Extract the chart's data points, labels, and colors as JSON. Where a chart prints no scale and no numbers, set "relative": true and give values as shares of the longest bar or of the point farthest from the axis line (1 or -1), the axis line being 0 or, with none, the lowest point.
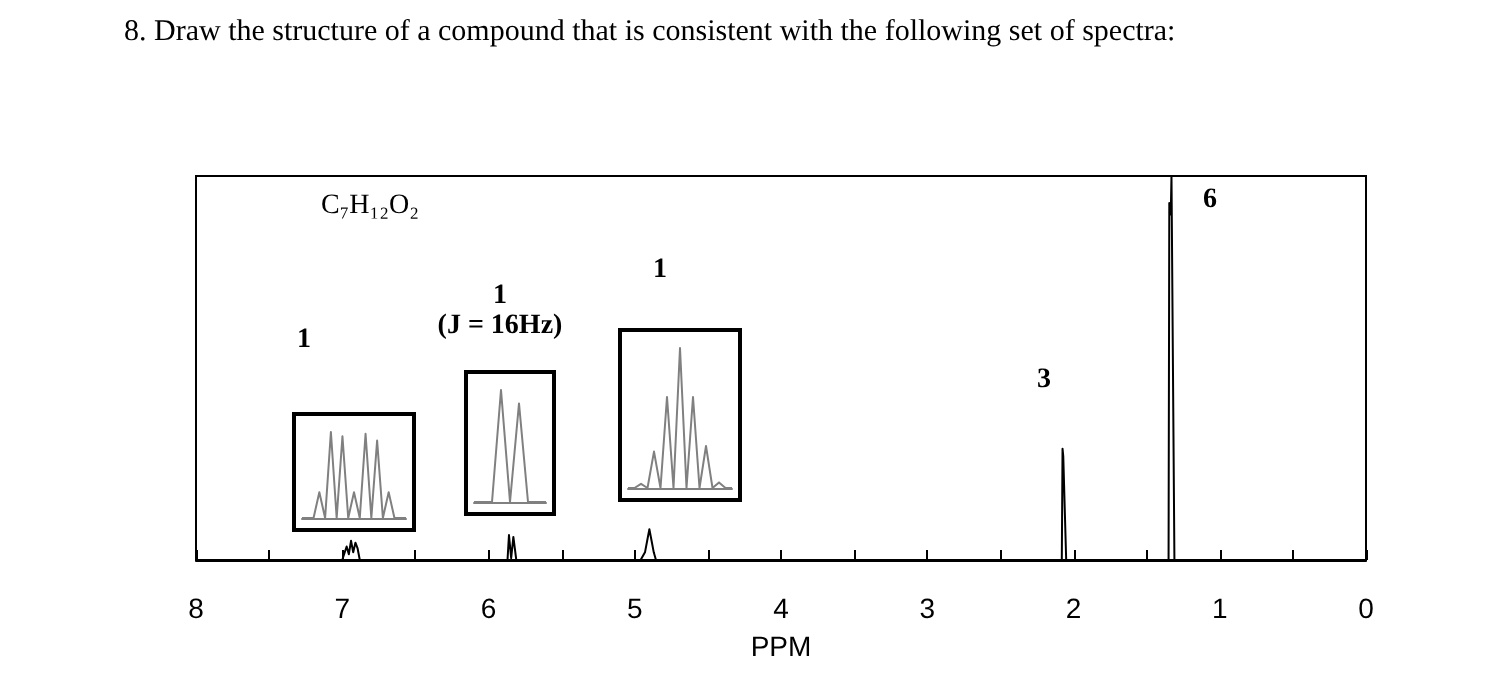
{
  "chart_data": [
    {
      "type": "line",
      "title": "8. Draw the structure of a compound that is consistent with the following set of spectra:",
      "xlabel": "PPM",
      "relative": true,
      "marker": "none",
      "x": [
        8,
        7.0,
        6.97,
        6.955,
        6.94,
        6.925,
        6.91,
        6.895,
        6.88,
        6.86,
        5.9,
        5.87,
        5.86,
        5.845,
        5.83,
        5.81,
        4.96,
        4.93,
        4.915,
        4.9,
        4.885,
        4.87,
        4.855,
        4.83,
        2.1,
        2.08,
        2.075,
        2.07,
        2.05,
        1.37,
        1.35,
        1.345,
        1.335,
        1.33,
        1.31,
        0
      ],
      "values": [
        0,
        0,
        0.035,
        0.015,
        0.05,
        0.02,
        0.045,
        0.03,
        0,
        0,
        0,
        0,
        0.065,
        0.005,
        0.06,
        0,
        0,
        0.02,
        0.05,
        0.08,
        0.05,
        0.02,
        0,
        0,
        0,
        0,
        0.29,
        0.27,
        0,
        0,
        0,
        0.93,
        0.9,
        1,
        0,
        0
      ],
      "color": "#000000",
      "xlim": [
        8,
        0
      ],
      "xticks": [
        8,
        {
          "value": 7.5,
          "label": null
        },
        7,
        {
          "value": 6.5,
          "label": null
        },
        6,
        {
          "value": 5.5,
          "label": null
        },
        5,
        {
          "value": 4.5,
          "label": null
        },
        4,
        {
          "value": 3.5,
          "label": null
        },
        3,
        {
          "value": 2.5,
          "label": null
        },
        2,
        {
          "value": 1.5,
          "label": null
        },
        1,
        {
          "value": 0.5,
          "label": null
        },
        0
      ],
      "annotations": [
        "C₇H₁₂O₂",
        "1",
        "1",
        "(J = 16Hz)",
        "1",
        "3",
        "6"
      ]
    },
    {
      "type": "line",
      "relative": true,
      "marker": "none",
      "color": "#808080",
      "categories": [
        null,
        null,
        null,
        null,
        null,
        null,
        null,
        null,
        null,
        null,
        null,
        null,
        null,
        null,
        null,
        null,
        null,
        null,
        null
      ],
      "values": [
        0,
        0,
        0,
        0.3,
        0,
        1,
        0,
        0.95,
        0,
        0.3,
        0,
        0.98,
        0,
        0.9,
        0,
        0.3,
        0,
        0,
        0
      ]
    },
    {
      "type": "line",
      "relative": true,
      "marker": "none",
      "color": "#808080",
      "categories": [
        null,
        null,
        null,
        null,
        null,
        null,
        null,
        null,
        null
      ],
      "values": [
        0,
        0,
        0,
        1,
        0,
        0.88,
        0,
        0,
        0
      ]
    },
    {
      "type": "line",
      "relative": true,
      "marker": "none",
      "color": "#808080",
      "categories": [
        null,
        null,
        null,
        null,
        null,
        null,
        null,
        null,
        null,
        null,
        null,
        null,
        null,
        null,
        null,
        null,
        null
      ],
      "values": [
        0,
        0,
        0.03,
        0,
        0.26,
        0,
        0.65,
        0,
        1,
        0,
        0.65,
        0,
        0.3,
        0,
        0.04,
        0,
        0
      ]
    }
  ]
}
